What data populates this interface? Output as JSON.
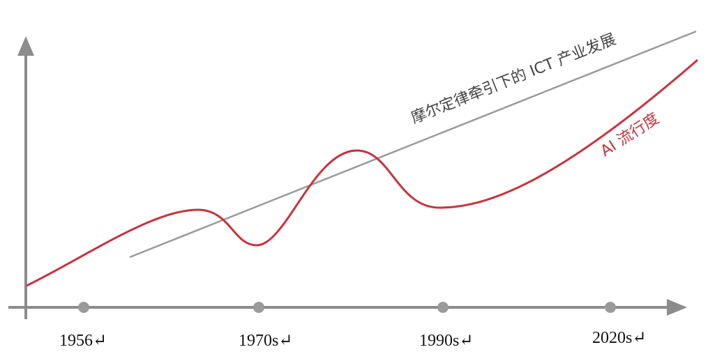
{
  "timeline": {
    "ticks": [
      {
        "label": "1956↵"
      },
      {
        "label": "1970s↵"
      },
      {
        "label": "1990s↵"
      },
      {
        "label": "2020s↵"
      }
    ]
  },
  "lines": {
    "ict": {
      "label": "摩尔定律牵引下的 ICT 产业发展",
      "color": "#9a9a9a"
    },
    "ai": {
      "label": "AI 流行度",
      "color": "#c8323c"
    }
  },
  "axis_color": "#8c8c8c"
}
